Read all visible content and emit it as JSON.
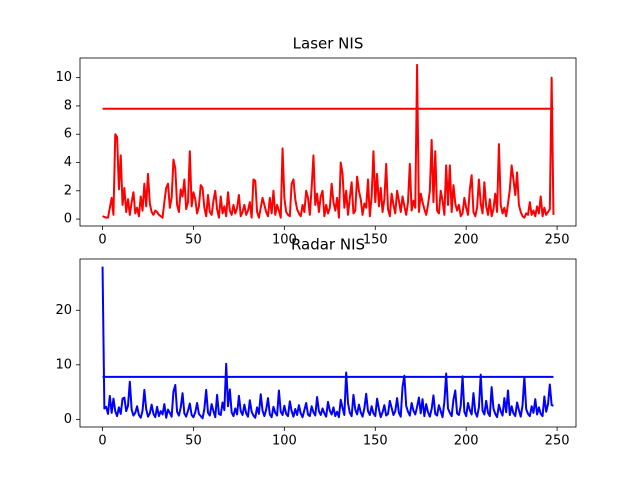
{
  "chart_data": [
    {
      "type": "line",
      "title": "Laser NIS",
      "x": [
        0,
        1,
        2,
        3,
        4,
        5,
        6,
        7,
        8,
        9,
        10,
        11,
        12,
        13,
        14,
        15,
        16,
        17,
        18,
        19,
        20,
        21,
        22,
        23,
        24,
        25,
        26,
        27,
        28,
        29,
        30,
        31,
        32,
        33,
        34,
        35,
        36,
        37,
        38,
        39,
        40,
        41,
        42,
        43,
        44,
        45,
        46,
        47,
        48,
        49,
        50,
        51,
        52,
        53,
        54,
        55,
        56,
        57,
        58,
        59,
        60,
        61,
        62,
        63,
        64,
        65,
        66,
        67,
        68,
        69,
        70,
        71,
        72,
        73,
        74,
        75,
        76,
        77,
        78,
        79,
        80,
        81,
        82,
        83,
        84,
        85,
        86,
        87,
        88,
        89,
        90,
        91,
        92,
        93,
        94,
        95,
        96,
        97,
        98,
        99,
        100,
        101,
        102,
        103,
        104,
        105,
        106,
        107,
        108,
        109,
        110,
        111,
        112,
        113,
        114,
        115,
        116,
        117,
        118,
        119,
        120,
        121,
        122,
        123,
        124,
        125,
        126,
        127,
        128,
        129,
        130,
        131,
        132,
        133,
        134,
        135,
        136,
        137,
        138,
        139,
        140,
        141,
        142,
        143,
        144,
        145,
        146,
        147,
        148,
        149,
        150,
        151,
        152,
        153,
        154,
        155,
        156,
        157,
        158,
        159,
        160,
        161,
        162,
        163,
        164,
        165,
        166,
        167,
        168,
        169,
        170,
        171,
        172,
        173,
        174,
        175,
        176,
        177,
        178,
        179,
        180,
        181,
        182,
        183,
        184,
        185,
        186,
        187,
        188,
        189,
        190,
        191,
        192,
        193,
        194,
        195,
        196,
        197,
        198,
        199,
        200,
        201,
        202,
        203,
        204,
        205,
        206,
        207,
        208,
        209,
        210,
        211,
        212,
        213,
        214,
        215,
        216,
        217,
        218,
        219,
        220,
        221,
        222,
        223,
        224,
        225,
        226,
        227,
        228,
        229,
        230,
        231,
        232,
        233,
        234,
        235,
        236,
        237,
        238,
        239,
        240,
        241,
        242,
        243,
        244,
        245,
        246,
        247,
        248
      ],
      "series": [
        {
          "color": "#ff0000",
          "values": [
            0.2,
            0.15,
            0.1,
            0.1,
            0.8,
            1.5,
            0.3,
            6.0,
            5.8,
            2.1,
            4.5,
            1.0,
            2.2,
            0.5,
            1.4,
            0.3,
            1.2,
            1.9,
            0.4,
            0.8,
            0.2,
            1.6,
            0.6,
            2.5,
            0.9,
            3.2,
            1.1,
            0.5,
            0.3,
            0.6,
            0.5,
            0.3,
            0.2,
            0.1,
            1.2,
            2.2,
            2.5,
            0.8,
            1.5,
            4.2,
            3.6,
            1.0,
            0.5,
            2.1,
            1.6,
            2.8,
            0.7,
            1.2,
            4.8,
            0.9,
            1.9,
            1.4,
            0.4,
            0.9,
            2.4,
            2.2,
            0.8,
            0.2,
            1.7,
            0.5,
            0.3,
            1.3,
            2.0,
            0.7,
            0.1,
            1.6,
            0.4,
            0.9,
            0.2,
            1.9,
            0.6,
            0.3,
            1.0,
            0.4,
            0.8,
            1.7,
            0.2,
            0.5,
            1.0,
            0.3,
            0.6,
            1.2,
            0.1,
            2.8,
            2.7,
            0.5,
            0.1,
            0.8,
            1.5,
            1.0,
            0.5,
            0.2,
            1.5,
            0.4,
            2.0,
            0.3,
            1.0,
            0.6,
            0.1,
            5.0,
            1.5,
            0.5,
            0.3,
            0.2,
            2.5,
            2.8,
            1.4,
            0.7,
            0.4,
            0.2,
            1.0,
            0.5,
            2.0,
            1.5,
            0.3,
            2.2,
            4.5,
            1.0,
            1.8,
            0.5,
            1.6,
            2.0,
            0.2,
            1.0,
            0.4,
            0.8,
            2.5,
            1.2,
            0.6,
            1.5,
            0.1,
            4.0,
            3.2,
            0.8,
            2.0,
            0.3,
            1.5,
            2.6,
            0.4,
            0.6,
            3.0,
            2.0,
            1.4,
            0.3,
            1.1,
            0.8,
            2.8,
            0.2,
            1.6,
            4.8,
            1.2,
            3.2,
            0.9,
            2.2,
            0.5,
            1.4,
            3.9,
            0.7,
            0.2,
            1.8,
            1.0,
            0.4,
            2.0,
            1.3,
            0.5,
            1.6,
            0.9,
            0.3,
            1.2,
            3.9,
            0.6,
            1.3,
            0.8,
            10.9,
            0.5,
            1.8,
            1.2,
            0.7,
            0.3,
            1.0,
            2.0,
            5.6,
            1.2,
            4.8,
            0.6,
            0.4,
            2.0,
            1.3,
            0.3,
            3.8,
            1.0,
            3.8,
            0.5,
            2.4,
            1.1,
            0.6,
            1.0,
            0.2,
            0.4,
            1.5,
            0.8,
            0.3,
            2.1,
            3.1,
            0.5,
            0.2,
            0.8,
            2.8,
            1.1,
            0.4,
            2.6,
            0.9,
            0.3,
            1.4,
            0.2,
            0.7,
            1.8,
            0.5,
            5.3,
            1.0,
            0.4,
            0.8,
            0.2,
            1.1,
            2.1,
            3.8,
            2.8,
            1.7,
            3.3,
            1.0,
            0.5,
            0.2,
            0.1,
            0.4,
            0.3,
            1.2,
            0.3,
            0.6,
            0.2,
            0.9,
            0.4,
            1.6,
            0.2,
            0.8,
            0.3,
            0.5,
            0.7,
            10.0,
            0.3
          ]
        },
        {
          "color": "#ff0000",
          "x": [
            0,
            248
          ],
          "values": [
            7.8,
            7.8
          ]
        }
      ],
      "xlim": [
        -12.4,
        260.4
      ],
      "ylim": [
        -0.49,
        11.39
      ],
      "xticks": [
        0,
        50,
        100,
        150,
        200,
        250
      ],
      "yticks": [
        0,
        2,
        4,
        6,
        8,
        10
      ]
    },
    {
      "type": "line",
      "title": "Radar NIS",
      "x": [
        0,
        1,
        2,
        3,
        4,
        5,
        6,
        7,
        8,
        9,
        10,
        11,
        12,
        13,
        14,
        15,
        16,
        17,
        18,
        19,
        20,
        21,
        22,
        23,
        24,
        25,
        26,
        27,
        28,
        29,
        30,
        31,
        32,
        33,
        34,
        35,
        36,
        37,
        38,
        39,
        40,
        41,
        42,
        43,
        44,
        45,
        46,
        47,
        48,
        49,
        50,
        51,
        52,
        53,
        54,
        55,
        56,
        57,
        58,
        59,
        60,
        61,
        62,
        63,
        64,
        65,
        66,
        67,
        68,
        69,
        70,
        71,
        72,
        73,
        74,
        75,
        76,
        77,
        78,
        79,
        80,
        81,
        82,
        83,
        84,
        85,
        86,
        87,
        88,
        89,
        90,
        91,
        92,
        93,
        94,
        95,
        96,
        97,
        98,
        99,
        100,
        101,
        102,
        103,
        104,
        105,
        106,
        107,
        108,
        109,
        110,
        111,
        112,
        113,
        114,
        115,
        116,
        117,
        118,
        119,
        120,
        121,
        122,
        123,
        124,
        125,
        126,
        127,
        128,
        129,
        130,
        131,
        132,
        133,
        134,
        135,
        136,
        137,
        138,
        139,
        140,
        141,
        142,
        143,
        144,
        145,
        146,
        147,
        148,
        149,
        150,
        151,
        152,
        153,
        154,
        155,
        156,
        157,
        158,
        159,
        160,
        161,
        162,
        163,
        164,
        165,
        166,
        167,
        168,
        169,
        170,
        171,
        172,
        173,
        174,
        175,
        176,
        177,
        178,
        179,
        180,
        181,
        182,
        183,
        184,
        185,
        186,
        187,
        188,
        189,
        190,
        191,
        192,
        193,
        194,
        195,
        196,
        197,
        198,
        199,
        200,
        201,
        202,
        203,
        204,
        205,
        206,
        207,
        208,
        209,
        210,
        211,
        212,
        213,
        214,
        215,
        216,
        217,
        218,
        219,
        220,
        221,
        222,
        223,
        224,
        225,
        226,
        227,
        228,
        229,
        230,
        231,
        232,
        233,
        234,
        235,
        236,
        237,
        238,
        239,
        240,
        241,
        242,
        243,
        244,
        245,
        246,
        247,
        248
      ],
      "series": [
        {
          "color": "#0000ff",
          "values": [
            28.0,
            2.0,
            2.3,
            1.0,
            4.3,
            1.2,
            3.8,
            1.5,
            0.6,
            2.2,
            1.0,
            3.8,
            4.0,
            1.5,
            2.5,
            6.9,
            1.8,
            0.7,
            1.2,
            2.4,
            0.8,
            0.3,
            1.6,
            5.4,
            1.9,
            0.5,
            1.1,
            2.7,
            1.0,
            0.4,
            2.3,
            0.6,
            1.5,
            0.9,
            2.8,
            0.3,
            1.8,
            1.2,
            0.5,
            5.1,
            6.3,
            1.4,
            0.7,
            2.2,
            4.8,
            1.1,
            0.5,
            1.6,
            2.9,
            0.8,
            0.4,
            1.3,
            3.0,
            1.0,
            0.6,
            0.2,
            1.9,
            5.4,
            1.2,
            0.7,
            2.8,
            1.5,
            0.4,
            4.5,
            1.0,
            0.8,
            3.1,
            1.7,
            10.2,
            2.4,
            5.5,
            1.3,
            0.6,
            2.0,
            0.9,
            4.3,
            1.5,
            0.8,
            2.7,
            1.1,
            0.5,
            3.5,
            1.4,
            0.7,
            0.3,
            2.2,
            1.0,
            4.6,
            1.6,
            0.6,
            1.8,
            3.9,
            0.9,
            0.4,
            2.3,
            1.2,
            0.7,
            5.3,
            1.4,
            0.8,
            2.5,
            1.0,
            0.6,
            3.3,
            1.5,
            0.5,
            1.9,
            0.8,
            2.6,
            1.1,
            0.4,
            1.7,
            3.0,
            0.9,
            0.6,
            2.4,
            1.3,
            0.7,
            4.1,
            1.5,
            0.8,
            2.0,
            1.1,
            0.5,
            3.2,
            1.6,
            0.9,
            2.2,
            0.6,
            1.4,
            0.4,
            3.6,
            2.1,
            0.8,
            8.6,
            3.0,
            1.2,
            0.6,
            4.5,
            1.8,
            0.9,
            2.7,
            1.3,
            0.5,
            2.0,
            4.7,
            1.5,
            0.8,
            2.4,
            1.1,
            0.6,
            3.8,
            1.9,
            0.4,
            1.3,
            2.6,
            0.7,
            1.0,
            3.4,
            2.1,
            0.8,
            1.5,
            3.9,
            1.2,
            0.5,
            6.0,
            8.0,
            2.5,
            1.4,
            0.7,
            3.0,
            1.6,
            0.9,
            2.3,
            4.0,
            1.1,
            3.7,
            0.6,
            2.8,
            1.3,
            0.5,
            1.9,
            4.4,
            1.0,
            0.7,
            2.6,
            1.5,
            0.4,
            3.2,
            8.4,
            2.0,
            1.2,
            0.6,
            3.6,
            5.3,
            1.1,
            0.8,
            2.5,
            7.9,
            1.4,
            0.6,
            3.0,
            1.7,
            0.9,
            4.8,
            1.3,
            0.5,
            2.2,
            8.2,
            1.6,
            0.9,
            3.4,
            1.2,
            0.6,
            5.9,
            2.0,
            1.0,
            0.4,
            2.7,
            1.5,
            0.7,
            3.9,
            1.3,
            5.3,
            0.8,
            2.4,
            1.1,
            0.6,
            3.1,
            1.7,
            0.5,
            2.6,
            7.8,
            1.9,
            1.0,
            0.6,
            2.4,
            1.2,
            3.7,
            0.9,
            2.2,
            1.0,
            0.6,
            4.2,
            1.4,
            2.8,
            6.4,
            2.6,
            2.5
          ]
        },
        {
          "color": "#0000ff",
          "x": [
            0,
            248
          ],
          "values": [
            7.8,
            7.8
          ]
        }
      ],
      "xlim": [
        -12.4,
        260.4
      ],
      "ylim": [
        -1.4,
        29.4
      ],
      "xticks": [
        0,
        50,
        100,
        150,
        200,
        250
      ],
      "yticks": [
        0,
        10,
        20
      ]
    }
  ]
}
